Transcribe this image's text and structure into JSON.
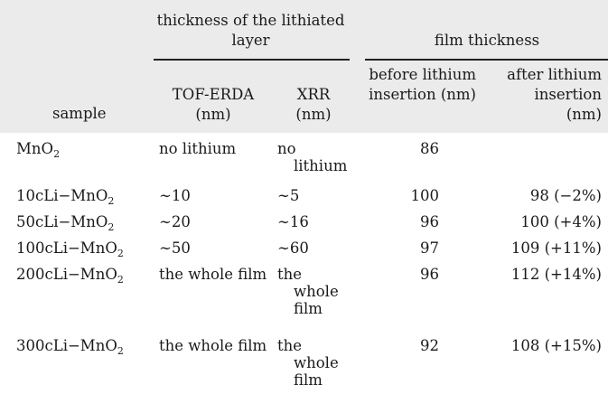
{
  "table": {
    "header": {
      "lithiated_group": "thickness of the lithiated layer",
      "film_group": "film thickness",
      "sample": "sample",
      "tof_erda": "TOF-ERDA (nm)",
      "xrr": "XRR (nm)",
      "before": "before lithium insertion (nm)",
      "after": "after lithium insertion (nm)"
    },
    "rows": [
      {
        "prefix": "",
        "formula": "MnO",
        "sub": "2",
        "tof": "no lithium",
        "xrr": "no lithium",
        "before": "86",
        "after": ""
      },
      {
        "prefix": "10cLi−",
        "formula": "MnO",
        "sub": "2",
        "tof": "∼10",
        "xrr": "∼5",
        "before": "100",
        "after": "98 (−2%)"
      },
      {
        "prefix": "50cLi−",
        "formula": "MnO",
        "sub": "2",
        "tof": "∼20",
        "xrr": "∼16",
        "before": "96",
        "after": "100 (+4%)"
      },
      {
        "prefix": "100cLi−",
        "formula": "MnO",
        "sub": "2",
        "tof": "∼50",
        "xrr": "∼60",
        "before": "97",
        "after": "109 (+11%)"
      },
      {
        "prefix": "200cLi−",
        "formula": "MnO",
        "sub": "2",
        "tof": "the whole film",
        "xrr": "the whole film",
        "before": "96",
        "after": "112 (+14%)"
      },
      {
        "prefix": "300cLi−",
        "formula": "MnO",
        "sub": "2",
        "tof": "the whole film",
        "xrr": "the whole film",
        "before": "92",
        "after": "108 (+15%)"
      }
    ]
  }
}
